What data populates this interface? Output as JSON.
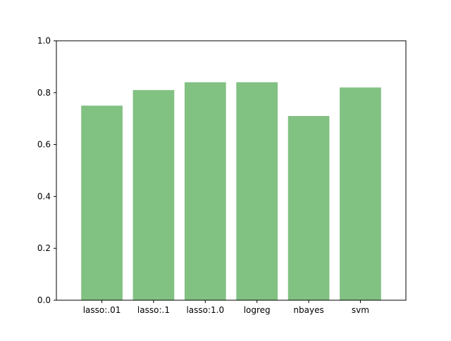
{
  "chart_data": {
    "type": "bar",
    "title": "",
    "xlabel": "",
    "ylabel": "",
    "categories": [
      "lasso:.01",
      "lasso:.1",
      "lasso:1.0",
      "logreg",
      "nbayes",
      "svm"
    ],
    "values": [
      0.75,
      0.81,
      0.84,
      0.84,
      0.71,
      0.82
    ],
    "ylim": [
      0,
      1.0
    ],
    "yticks": [
      "0.0",
      "0.2",
      "0.4",
      "0.6",
      "0.8",
      "1.0"
    ],
    "bar_color": "#81c182",
    "grid": false,
    "legend": "none"
  }
}
